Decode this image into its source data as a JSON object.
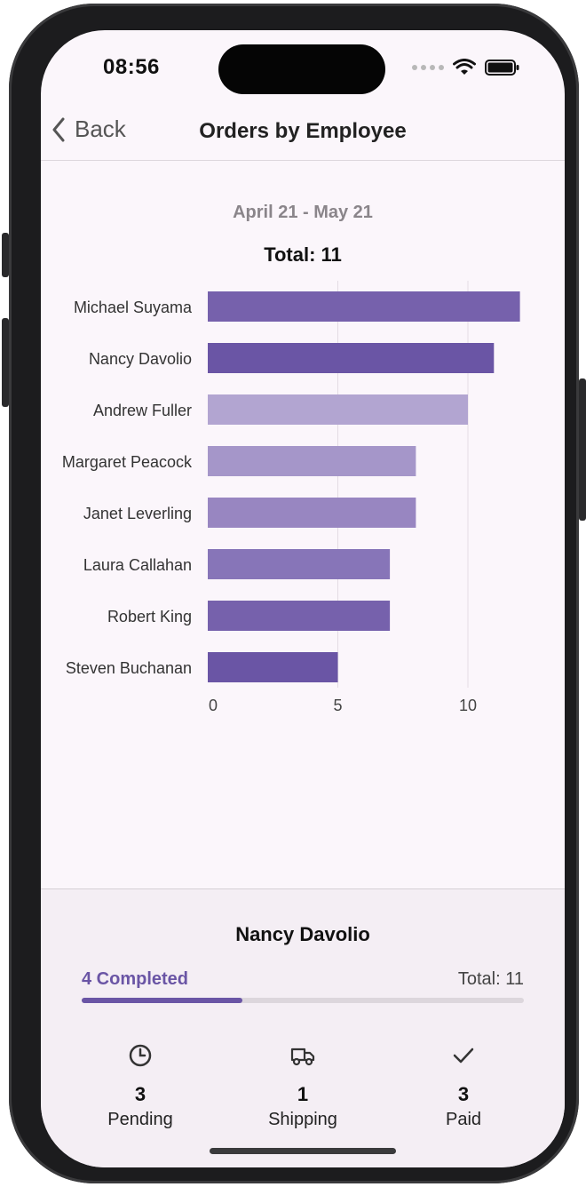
{
  "status_bar": {
    "time": "08:56"
  },
  "navbar": {
    "back_label": "Back",
    "title": "Orders by Employee"
  },
  "header": {
    "date_range": "April 21 - May 21",
    "total_label": "Total: 11"
  },
  "chart_data": {
    "type": "bar",
    "orientation": "horizontal",
    "categories": [
      "Michael Suyama",
      "Nancy Davolio",
      "Andrew Fuller",
      "Margaret Peacock",
      "Janet Leverling",
      "Laura Callahan",
      "Robert King",
      "Steven Buchanan"
    ],
    "values": [
      12,
      11,
      10,
      8,
      8,
      7,
      7,
      5
    ],
    "bar_colors": [
      "#7661ac",
      "#6a55a5",
      "#b2a5d1",
      "#a596c9",
      "#9886c1",
      "#8775b8",
      "#7661ac",
      "#6a55a5"
    ],
    "xticks": [
      0,
      5,
      10
    ],
    "xlim": [
      0,
      12
    ],
    "grid": true,
    "legend": "none"
  },
  "detail": {
    "employee_name": "Nancy Davolio",
    "completed_label": "4 Completed",
    "completed_value": 4,
    "total_label": "Total: 11",
    "total_value": 11,
    "accent": "#6a55a5",
    "stats": [
      {
        "icon": "clock-icon",
        "value": "3",
        "label": "Pending"
      },
      {
        "icon": "truck-icon",
        "value": "1",
        "label": "Shipping"
      },
      {
        "icon": "checkmark-icon",
        "value": "3",
        "label": "Paid"
      }
    ]
  }
}
